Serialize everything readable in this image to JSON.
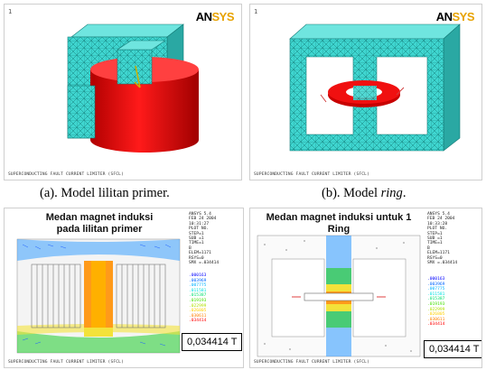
{
  "panels": {
    "a": {
      "logo_main": "AN",
      "logo_accent": "SYS",
      "index": "1",
      "footer": "SUPERCONDUCTING FAULT CURRENT LIMITER (SFCL)",
      "caption_prefix": "(a). Model lilitan primer."
    },
    "b": {
      "logo_main": "AN",
      "logo_accent": "SYS",
      "index": "1",
      "footer": "SUPERCONDUCTING FAULT CURRENT LIMITER (SFCL)",
      "caption_prefix": "(b). Model ",
      "caption_italic": "ring",
      "caption_suffix": "."
    },
    "c": {
      "title_line1": "Medan magnet induksi",
      "title_line2": "pada lilitan primer",
      "info": "ANSYS 5.4\nFEB 24 2004\n10:31:27\nPLOT NO.\nSTEP=1\nSUB =1\nTIME=1\nB\nELEM=1171\nRSYS=0\nSMX =.034414",
      "legend": ".000163\n.003969\n.007775\n.011581\n.015387\n.019193\n.022999\n.026805\n.030611\n.034414",
      "value_box": "0,034414  T",
      "footer": "SUPERCONDUCTING FAULT CURRENT LIMITER (SFCL)"
    },
    "d": {
      "title": "Medan magnet induksi untuk 1 Ring",
      "info": "ANSYS 5.4\nFEB 24 2004\n10:33:28\nPLOT NO.\nSTEP=1\nSUB =1\nTIME=1\nB\nELEM=1171\nRSYS=0\nSMX =.034414",
      "legend": ".000163\n.003969\n.007775\n.011581\n.015387\n.019193\n.022999\n.026805\n.030611\n.034414",
      "value_box": "0,034414  T",
      "footer": "SUPERCONDUCTING FAULT CURRENT LIMITER (SFCL)"
    }
  },
  "colors": {
    "mesh": "#3fd6d0",
    "coil": "#e00000",
    "legend": [
      "#0000ff",
      "#0066ff",
      "#00b2ff",
      "#00e0e0",
      "#00e070",
      "#44e000",
      "#b0e000",
      "#ffd000",
      "#ff8000",
      "#ff0000"
    ]
  }
}
